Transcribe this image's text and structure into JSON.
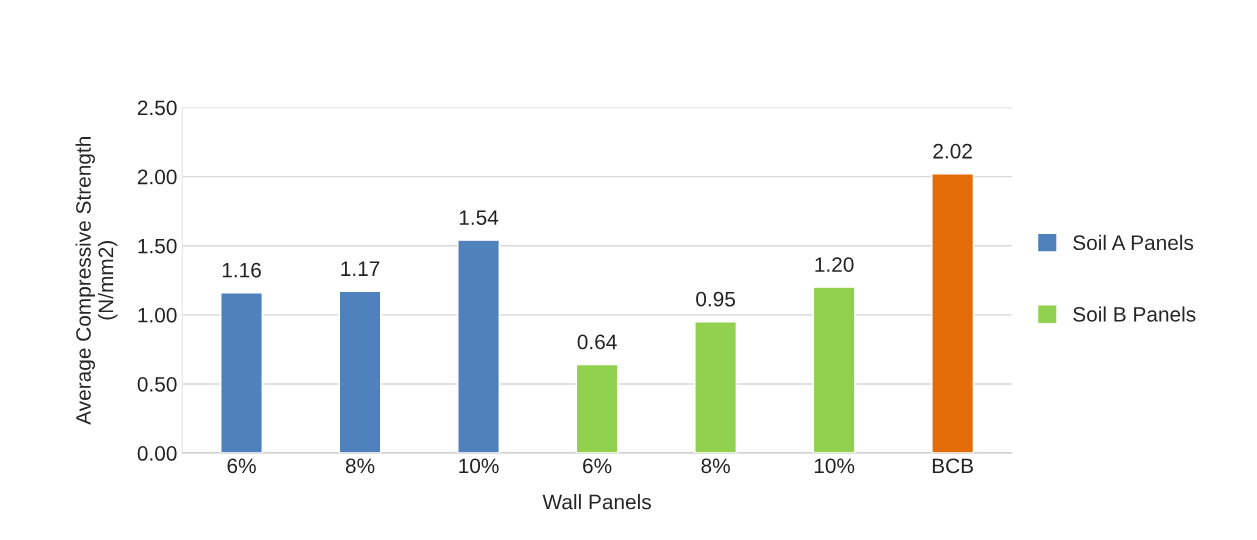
{
  "chart_data": {
    "type": "bar",
    "xlabel": "Wall Panels",
    "ylabel": "Average Compressive Strength\n(N/mm2)",
    "categories": [
      "6%",
      "8%",
      "10%",
      "6%",
      "8%",
      "10%",
      "BCB"
    ],
    "stacked": true,
    "series": [
      {
        "name": "Soil A Panels",
        "color": "#4f81bd",
        "values": [
          1.16,
          1.17,
          1.54,
          null,
          null,
          null,
          null
        ],
        "value_labels": [
          "1.16",
          "1.17",
          "1.54",
          null,
          null,
          null,
          null
        ]
      },
      {
        "name": "Soil B Panels",
        "color": "#92d050",
        "values": [
          null,
          null,
          null,
          0.64,
          0.95,
          1.2,
          null
        ],
        "value_labels": [
          null,
          null,
          null,
          "0.64",
          "0.95",
          "1.20",
          null
        ]
      },
      {
        "color": "#e36c09",
        "values": [
          null,
          null,
          null,
          null,
          null,
          null,
          2.02
        ],
        "value_labels": [
          null,
          null,
          null,
          null,
          null,
          null,
          "2.02"
        ]
      }
    ],
    "ylim": [
      0,
      2.5
    ],
    "yticks": [
      {
        "value": 0,
        "label": "0.00"
      },
      {
        "value": 0.5,
        "label": "0.50"
      },
      {
        "value": 1,
        "label": "1.00"
      },
      {
        "value": 1.5,
        "label": "1.50"
      },
      {
        "value": 2,
        "label": "2.00"
      },
      {
        "value": 2.5,
        "label": "2.50"
      }
    ],
    "grid": "y",
    "legend": "right"
  }
}
